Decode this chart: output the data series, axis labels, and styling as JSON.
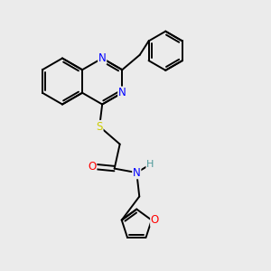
{
  "bg_color": "#ebebeb",
  "atom_colors": {
    "N": "#0000ff",
    "O": "#ff0000",
    "S": "#cccc00",
    "H": "#4d9999"
  },
  "bond_color": "#000000",
  "lw": 1.4,
  "figsize": [
    3.0,
    3.0
  ],
  "dpi": 100
}
